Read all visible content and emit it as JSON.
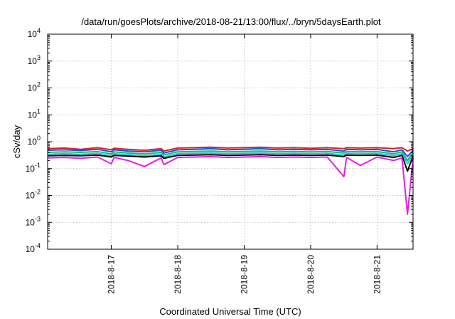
{
  "chart_data": {
    "type": "line",
    "title": "/data/run/goesPlots/archive/2018-08-21/13:00/flux/../bryn/5daysEarth.plot",
    "xlabel": "Coordinated Universal Time (UTC)",
    "ylabel": "cSv/day",
    "yscale": "log",
    "ylim": [
      0.0001,
      10000
    ],
    "xlim": [
      "2018-08-16 01:00",
      "2018-08-21 13:00"
    ],
    "grid": true,
    "legend": "none",
    "y_ticks": [
      {
        "base": "10",
        "exp": "-4"
      },
      {
        "base": "10",
        "exp": "-3"
      },
      {
        "base": "10",
        "exp": "-2"
      },
      {
        "base": "10",
        "exp": "-1"
      },
      {
        "base": "10",
        "exp": "0"
      },
      {
        "base": "10",
        "exp": "1"
      },
      {
        "base": "10",
        "exp": "2"
      },
      {
        "base": "10",
        "exp": "3"
      },
      {
        "base": "10",
        "exp": "4"
      }
    ],
    "x_ticks": [
      "2018-8-17",
      "2018-8-18",
      "2018-8-19",
      "2018-8-20",
      "2018-8-21"
    ],
    "x": [
      "2018-08-16 01:00",
      "2018-08-16 07:00",
      "2018-08-16 13:00",
      "2018-08-16 19:00",
      "2018-08-17 00:00",
      "2018-08-17 01:00",
      "2018-08-17 06:00",
      "2018-08-17 12:00",
      "2018-08-17 18:00",
      "2018-08-17 19:00",
      "2018-08-18 00:00",
      "2018-08-18 06:00",
      "2018-08-18 12:00",
      "2018-08-18 18:00",
      "2018-08-19 00:00",
      "2018-08-19 06:00",
      "2018-08-19 12:00",
      "2018-08-19 18:00",
      "2018-08-20 00:00",
      "2018-08-20 06:00",
      "2018-08-20 12:00",
      "2018-08-20 13:00",
      "2018-08-20 18:00",
      "2018-08-21 00:00",
      "2018-08-21 06:00",
      "2018-08-21 09:00",
      "2018-08-21 11:00",
      "2018-08-21 13:00"
    ],
    "series": [
      {
        "color": "#dd1f1f",
        "values": [
          0.55,
          0.58,
          0.52,
          0.6,
          0.5,
          0.57,
          0.52,
          0.48,
          0.55,
          0.45,
          0.58,
          0.6,
          0.62,
          0.58,
          0.6,
          0.62,
          0.58,
          0.6,
          0.57,
          0.6,
          0.55,
          0.6,
          0.58,
          0.6,
          0.55,
          0.6,
          0.45,
          0.55
        ]
      },
      {
        "color": "#1a4fe0",
        "values": [
          0.48,
          0.5,
          0.47,
          0.52,
          0.42,
          0.5,
          0.45,
          0.42,
          0.48,
          0.38,
          0.5,
          0.52,
          0.55,
          0.5,
          0.52,
          0.55,
          0.5,
          0.52,
          0.5,
          0.52,
          0.45,
          0.52,
          0.5,
          0.52,
          0.42,
          0.5,
          0.28,
          0.48
        ]
      },
      {
        "color": "#1fb86a",
        "values": [
          0.4,
          0.42,
          0.4,
          0.43,
          0.35,
          0.42,
          0.38,
          0.35,
          0.4,
          0.32,
          0.42,
          0.43,
          0.45,
          0.42,
          0.43,
          0.45,
          0.42,
          0.43,
          0.42,
          0.43,
          0.38,
          0.43,
          0.42,
          0.43,
          0.35,
          0.42,
          0.2,
          0.4
        ]
      },
      {
        "color": "#1ec8d8",
        "values": [
          0.34,
          0.36,
          0.34,
          0.37,
          0.3,
          0.36,
          0.33,
          0.3,
          0.34,
          0.27,
          0.36,
          0.37,
          0.38,
          0.36,
          0.37,
          0.38,
          0.36,
          0.37,
          0.36,
          0.37,
          0.32,
          0.37,
          0.36,
          0.37,
          0.3,
          0.36,
          0.15,
          0.34
        ]
      },
      {
        "color": "#000000",
        "values": [
          0.3,
          0.31,
          0.3,
          0.32,
          0.27,
          0.31,
          0.29,
          0.27,
          0.3,
          0.24,
          0.31,
          0.32,
          0.33,
          0.31,
          0.32,
          0.33,
          0.31,
          0.32,
          0.31,
          0.32,
          0.28,
          0.32,
          0.31,
          0.32,
          0.26,
          0.31,
          0.08,
          0.3
        ]
      },
      {
        "color": "#e61ee6",
        "values": [
          0.25,
          0.26,
          0.24,
          0.27,
          0.15,
          0.26,
          0.2,
          0.12,
          0.25,
          0.14,
          0.26,
          0.27,
          0.28,
          0.26,
          0.27,
          0.28,
          0.26,
          0.27,
          0.26,
          0.27,
          0.05,
          0.26,
          0.13,
          0.27,
          0.2,
          0.25,
          0.002,
          0.25
        ]
      }
    ]
  }
}
